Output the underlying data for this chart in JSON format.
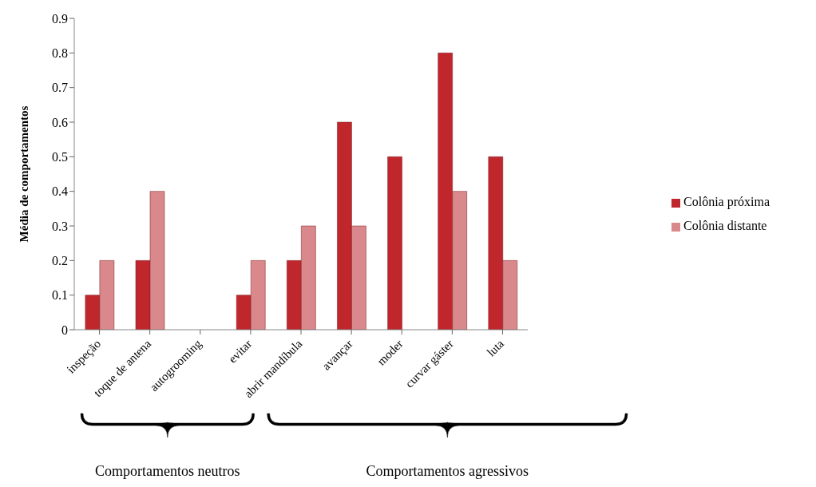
{
  "chart_data": {
    "type": "bar",
    "ylabel": "Média de comportamentos",
    "categories": [
      "inspeção",
      "toque de antena",
      "autogrooming",
      "evitar",
      "abrir mandíbula",
      "avançar",
      "moder",
      "curvar gáster",
      "luta"
    ],
    "series": [
      {
        "name": "Colônia próxima",
        "color": "#c0272d",
        "values": [
          0.1,
          0.2,
          0,
          0.1,
          0.2,
          0.6,
          0.5,
          0.8,
          0.5
        ]
      },
      {
        "name": "Colônia distante",
        "color": "#d9898b",
        "values": [
          0.2,
          0.4,
          0,
          0.2,
          0.3,
          0.3,
          0,
          0.4,
          0.2
        ]
      }
    ],
    "ylim": [
      0,
      0.9
    ],
    "yticks": [
      0,
      0.1,
      0.2,
      0.3,
      0.4,
      0.5,
      0.6,
      0.7,
      0.8,
      0.9
    ],
    "grid": false,
    "legend": "right",
    "annotations": [
      "Comportamentos neutros",
      "Comportamentos agressivos"
    ]
  }
}
